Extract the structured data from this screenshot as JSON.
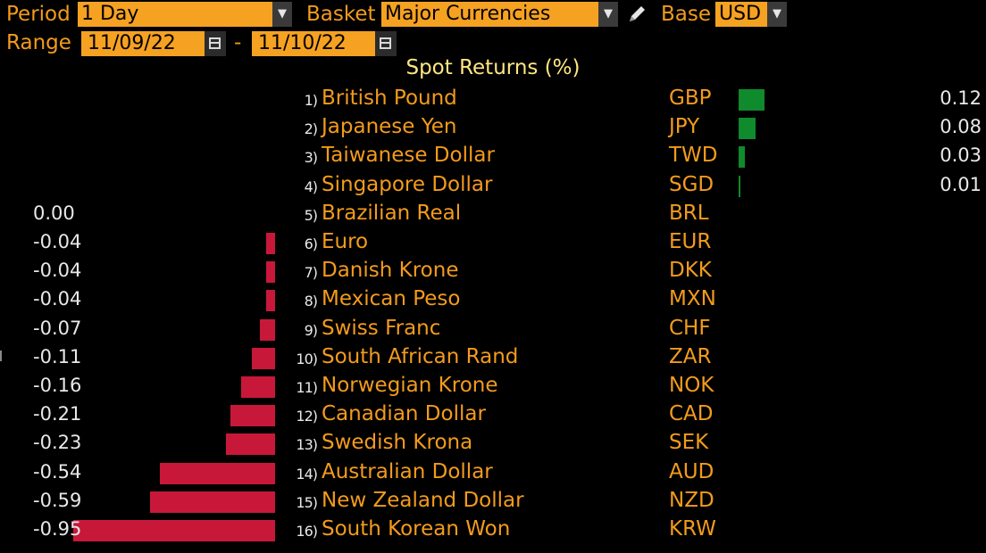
{
  "controls": {
    "period_label": "Period",
    "period_value": "1 Day",
    "basket_label": "Basket",
    "basket_value": "Major Currencies",
    "base_label": "Base",
    "base_value": "USD",
    "range_label": "Range",
    "range_start": "11/09/22",
    "range_sep": "-",
    "range_end": "11/10/22"
  },
  "colors": {
    "positive": "#0f8a2c",
    "negative": "#c8183a",
    "accent": "#f39b1c",
    "field_bg": "#f5a122"
  },
  "icons": {
    "dropdown": "chevron-down-icon",
    "edit": "pencil-icon",
    "calendar": "calendar-icon"
  },
  "chart_data": {
    "type": "bar",
    "title": "Spot Returns (%)",
    "categories": [
      "British Pound",
      "Japanese Yen",
      "Taiwanese Dollar",
      "Singapore Dollar",
      "Brazilian Real",
      "Euro",
      "Danish Krone",
      "Mexican Peso",
      "Swiss Franc",
      "South African Rand",
      "Norwegian Krone",
      "Canadian Dollar",
      "Swedish Krona",
      "Australian Dollar",
      "New Zealand Dollar",
      "South Korean Won"
    ],
    "ranks": [
      "1)",
      "2)",
      "3)",
      "4)",
      "5)",
      "6)",
      "7)",
      "8)",
      "9)",
      "10)",
      "11)",
      "12)",
      "13)",
      "14)",
      "15)",
      "16)"
    ],
    "codes": [
      "GBP",
      "JPY",
      "TWD",
      "SGD",
      "BRL",
      "EUR",
      "DKK",
      "MXN",
      "CHF",
      "ZAR",
      "NOK",
      "CAD",
      "SEK",
      "AUD",
      "NZD",
      "KRW"
    ],
    "values": [
      0.12,
      0.08,
      0.03,
      0.01,
      0.0,
      -0.04,
      -0.04,
      -0.04,
      -0.07,
      -0.11,
      -0.16,
      -0.21,
      -0.23,
      -0.54,
      -0.59,
      -0.95
    ],
    "value_labels": [
      "0.12",
      "0.08",
      "0.03",
      "0.01",
      "0.00",
      "-0.04",
      "-0.04",
      "-0.04",
      "-0.07",
      "-0.11",
      "-0.16",
      "-0.21",
      "-0.23",
      "-0.54",
      "-0.59",
      "-0.95"
    ],
    "xlabel": "",
    "ylabel": ""
  }
}
